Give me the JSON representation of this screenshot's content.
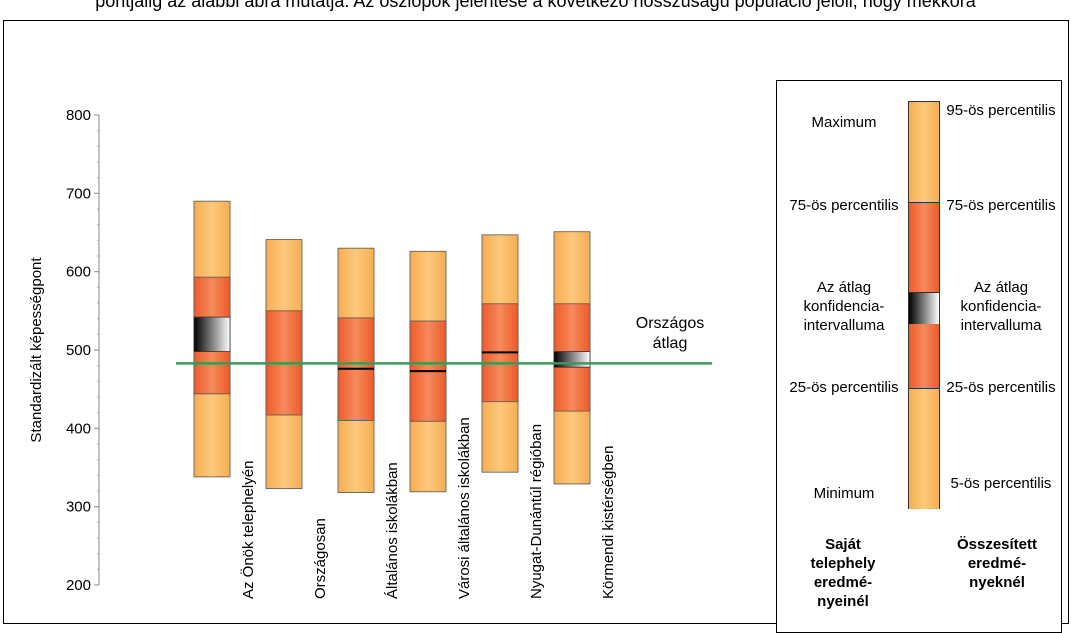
{
  "top_caption": "pontjaiig az alábbi ábra mutatja. Az oszlopok jelentése a következő hosszúságú populáció jelöli, hogy mekkora",
  "chart_data": {
    "type": "box",
    "title": "",
    "ylabel": "Standardizált képességpont",
    "ylim": [
      200,
      800
    ],
    "yticks": [
      200,
      300,
      400,
      500,
      600,
      700,
      800
    ],
    "categories": [
      "Az Önök telephelyén",
      "Országosan",
      "Általános iskolákban",
      "Városi általános iskolákban",
      "Nyugat-Dunántúl régióban",
      "Körmendi kistérségben"
    ],
    "boxes": [
      {
        "min": 338,
        "q1": 444,
        "ci_low": 498,
        "ci_high": 542,
        "q3": 593,
        "max": 690,
        "mean": null
      },
      {
        "min": 323,
        "q1": 417,
        "ci_low": null,
        "ci_high": null,
        "q3": 550,
        "max": 641,
        "mean": null
      },
      {
        "min": 318,
        "q1": 410,
        "ci_low": null,
        "ci_high": null,
        "q3": 541,
        "max": 630,
        "mean": 476
      },
      {
        "min": 319,
        "q1": 409,
        "ci_low": null,
        "ci_high": null,
        "q3": 537,
        "max": 626,
        "mean": 473
      },
      {
        "min": 344,
        "q1": 434,
        "ci_low": null,
        "ci_high": null,
        "q3": 559,
        "max": 647,
        "mean": 497
      },
      {
        "min": 329,
        "q1": 422,
        "ci_low": 478,
        "ci_high": 498,
        "q3": 559,
        "max": 651,
        "mean": null
      }
    ],
    "reference_line": {
      "value": 483,
      "label": [
        "Országos",
        "átlag"
      ],
      "color": "#3a9a5b"
    },
    "colors": {
      "outer": "#f8b55a",
      "inner": "#f26a35",
      "ci_dark": "#000000",
      "ci_light": "#ffffff"
    }
  },
  "legend": {
    "left_labels": [
      "Maximum",
      "75-ös percentilis",
      "Az átlag konfidencia-intervalluma",
      "25-ös percentilis",
      "Minimum"
    ],
    "right_labels": [
      "95-ös percentilis",
      "75-ös percentilis",
      "Az átlag konfidencia-intervalluma",
      "25-ös percentilis",
      "5-ös percentilis"
    ],
    "left_footer": "Saját telephely eredmé-nyeinél",
    "right_footer": "Összesített eredmé-nyeknél"
  }
}
